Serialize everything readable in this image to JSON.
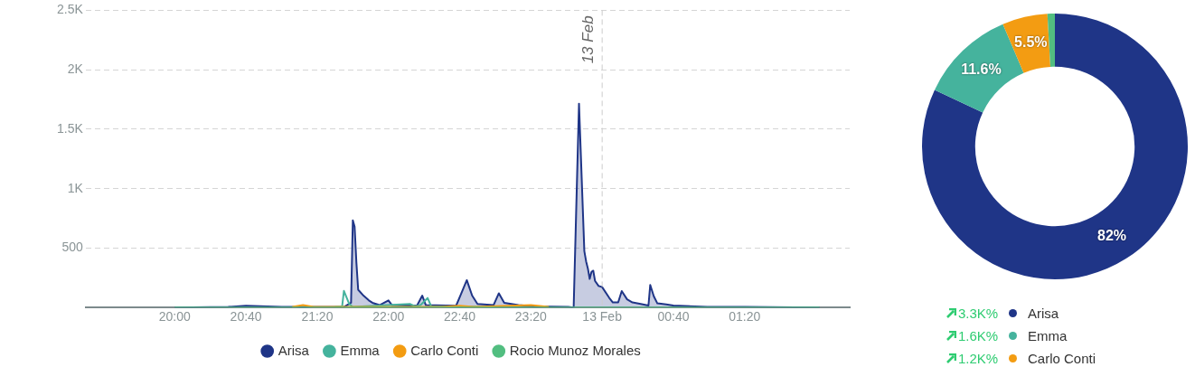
{
  "chart_data": [
    {
      "type": "line",
      "xlim": [
        "--02-12T19:10",
        "--02-13T02:19"
      ],
      "ylim": [
        0,
        2500
      ],
      "xticks": [
        {
          "value": "--02-12T20:00",
          "label": "20:00"
        },
        {
          "value": "--02-12T20:40",
          "label": "20:40"
        },
        {
          "value": "--02-12T21:20",
          "label": "21:20"
        },
        {
          "value": "--02-12T22:00",
          "label": "22:00"
        },
        {
          "value": "--02-12T22:40",
          "label": "22:40"
        },
        {
          "value": "--02-12T23:20",
          "label": "23:20"
        },
        {
          "value": "--02-13T00:00",
          "label": "13 Feb"
        },
        {
          "value": "--02-13T00:40",
          "label": "00:40"
        },
        {
          "value": "--02-13T01:20",
          "label": "01:20"
        }
      ],
      "yticks": [
        {
          "value": 0,
          "label": null
        },
        500,
        {
          "value": 1000,
          "label": "1K"
        },
        {
          "value": 1500,
          "label": "1.5K"
        },
        {
          "value": 2000,
          "label": "2K"
        },
        {
          "value": 2500,
          "label": "2.5K"
        }
      ],
      "grid": "y",
      "legend": "bottom",
      "line_style": "solid",
      "ref_lines": [
        {
          "axis": "x",
          "value": "--02-13T00:00",
          "label": "13 Feb",
          "color": "#cccccc",
          "line_style": "dashed"
        }
      ],
      "series": [
        {
          "name": "Arisa",
          "type": "area",
          "color": "#1f3587",
          "x": [
            "--02-12T20:00",
            "--02-12T20:30",
            "--02-12T20:40",
            "--02-12T21:00",
            "--02-12T21:35",
            "--02-12T21:39",
            "--02-12T21:40",
            "--02-12T21:41",
            "--02-12T21:42",
            "--02-12T21:43",
            "--02-12T21:46",
            "--02-12T21:49",
            "--02-12T21:51",
            "--02-12T21:55",
            "--02-12T22:00",
            "--02-12T22:02",
            "--02-12T22:16",
            "--02-12T22:19",
            "--02-12T22:21",
            "--02-12T22:38",
            "--02-12T22:44",
            "--02-12T22:47",
            "--02-12T22:50",
            "--02-12T22:59",
            "--02-12T23:02",
            "--02-12T23:05",
            "--02-12T23:13",
            "--02-12T23:22",
            "--02-12T23:41",
            "--02-12T23:44",
            "--02-12T23:47",
            "--02-12T23:50",
            "--02-12T23:51",
            "--02-12T23:52",
            "--02-12T23:53",
            "--02-12T23:54",
            "--02-12T23:55",
            "--02-12T23:56",
            "--02-12T23:58",
            "--02-13T00:00",
            "--02-13T00:04",
            "--02-13T00:06",
            "--02-13T00:09",
            "--02-13T00:11",
            "--02-13T00:14",
            "--02-13T00:17",
            "--02-13T00:21",
            "--02-13T00:26",
            "--02-13T00:27",
            "--02-13T00:29",
            "--02-13T00:31",
            "--02-13T00:36",
            "--02-13T00:40",
            "--02-13T00:52",
            "--02-13T00:59",
            "--02-13T01:20",
            "--02-13T02:02"
          ],
          "values": [
            0,
            5,
            15,
            5,
            5,
            40,
            733,
            680,
            380,
            150,
            100,
            60,
            40,
            20,
            60,
            20,
            15,
            100,
            20,
            15,
            230,
            100,
            30,
            20,
            120,
            40,
            20,
            10,
            5,
            0,
            1715,
            474,
            388,
            327,
            241,
            300,
            310,
            224,
            181,
            172,
            81,
            43,
            43,
            138,
            69,
            43,
            32,
            17,
            190,
            95,
            35,
            26,
            17,
            10,
            5,
            5,
            0
          ]
        },
        {
          "name": "Emma",
          "type": "line",
          "color": "#45b39d",
          "x": [
            "--02-12T21:30",
            "--02-12T21:34",
            "--02-12T21:35",
            "--02-12T21:38",
            "--02-12T21:40",
            "--02-12T22:12",
            "--02-12T22:15",
            "--02-12T22:18",
            "--02-12T22:22",
            "--02-12T22:24",
            "--02-12T23:00"
          ],
          "values": [
            5,
            10,
            140,
            30,
            5,
            30,
            10,
            20,
            80,
            10,
            5
          ]
        },
        {
          "name": "Carlo Conti",
          "type": "line",
          "color": "#f39c12",
          "x": [
            "--02-12T21:06",
            "--02-12T21:12",
            "--02-12T21:18",
            "--02-12T22:30",
            "--02-12T22:40",
            "--02-12T22:48",
            "--02-12T23:20",
            "--02-12T23:30"
          ],
          "values": [
            5,
            20,
            5,
            5,
            15,
            5,
            20,
            5
          ]
        },
        {
          "name": "Rocio Munoz Morales",
          "type": "line",
          "color": "#52be80",
          "x": [
            "--02-12T20:00",
            "--02-12T20:40",
            "--02-12T21:20",
            "--02-12T22:00",
            "--02-12T22:40",
            "--02-12T23:20",
            "--02-13T00:00",
            "--02-13T00:40",
            "--02-13T01:20",
            "--02-13T02:02"
          ],
          "values": [
            0,
            0,
            0,
            0,
            0,
            0,
            0,
            0,
            0,
            0
          ]
        }
      ]
    },
    {
      "type": "donut",
      "categories": [
        "Arisa",
        "Emma",
        "Carlo Conti",
        null
      ],
      "values": [
        82,
        11.6,
        5.5,
        0.9
      ],
      "colors": [
        "#1f3587",
        "#45b39d",
        "#f39c12",
        "#52be80"
      ],
      "value_labels": [
        "82%",
        "11.6%",
        "5.5%",
        null
      ],
      "legend": "bottom",
      "annotations": [
        "3.3K%",
        "1.6K%",
        "1.2K%"
      ]
    }
  ]
}
